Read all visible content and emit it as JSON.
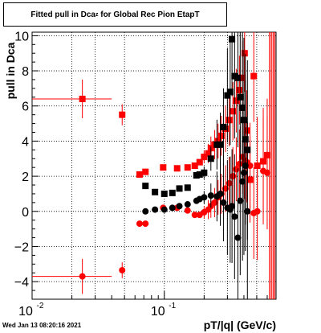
{
  "header": {
    "title_main": "Fitted pull in Dca",
    "title_sub": "z",
    "title_rest": " for Global Rec Pion EtapT",
    "timestamp": "Wed Jan 13 08:20:16 2021"
  },
  "chart_data": {
    "type": "scatter",
    "title": "Fitted pull in Dca_z for Global Rec Pion EtapT",
    "xlabel": "pT/|q| (GeV/c)",
    "ylabel": "pull in Dca",
    "xscale": "log",
    "xlim": [
      0.01,
      0.7
    ],
    "ylim": [
      -5,
      10.2
    ],
    "grid": true,
    "x_ticks": [
      {
        "value": 0.01,
        "label": "10",
        "exp": "-2"
      },
      {
        "value": 0.1,
        "label": "10",
        "exp": "-1"
      }
    ],
    "y_ticks": [
      -4,
      -2,
      0,
      2,
      4,
      6,
      8,
      10
    ],
    "series": [
      {
        "marker": "square",
        "color": "#ff0000",
        "points": [
          {
            "x": 0.024,
            "y": 6.4,
            "xerr": [
              0.014,
              0.016
            ],
            "yerr": 1.1
          },
          {
            "x": 0.048,
            "y": 5.5,
            "yerr": 0.6
          },
          {
            "x": 0.065,
            "y": 2.1
          },
          {
            "x": 0.072,
            "y": 2.25
          },
          {
            "x": 0.098,
            "y": 2.5
          },
          {
            "x": 0.125,
            "y": 2.45
          },
          {
            "x": 0.15,
            "y": 2.5
          },
          {
            "x": 0.17,
            "y": 2.6
          },
          {
            "x": 0.185,
            "y": 2.8
          },
          {
            "x": 0.2,
            "y": 3.1
          },
          {
            "x": 0.215,
            "y": 3.3
          },
          {
            "x": 0.225,
            "y": 3.6
          },
          {
            "x": 0.24,
            "y": 3.8
          },
          {
            "x": 0.255,
            "y": 4.0
          },
          {
            "x": 0.27,
            "y": 4.3
          },
          {
            "x": 0.29,
            "y": 4.7
          },
          {
            "x": 0.31,
            "y": 5.2
          },
          {
            "x": 0.33,
            "y": 5.7
          },
          {
            "x": 0.35,
            "y": 6.3
          },
          {
            "x": 0.37,
            "y": 6.9
          },
          {
            "x": 0.39,
            "y": 7.6
          },
          {
            "x": 0.405,
            "y": 9.0
          },
          {
            "x": 0.42,
            "y": 4.6
          },
          {
            "x": 0.445,
            "y": 1.8
          },
          {
            "x": 0.475,
            "y": 7.7
          },
          {
            "x": 0.505,
            "y": 2.6
          },
          {
            "x": 0.56,
            "y": 2.85
          },
          {
            "x": 0.6,
            "y": 3.2
          }
        ]
      },
      {
        "marker": "circle",
        "color": "#ff0000",
        "points": [
          {
            "x": 0.024,
            "y": -3.7,
            "xerr": [
              0.014,
              0.016
            ],
            "yerr": 1.0
          },
          {
            "x": 0.048,
            "y": -3.35,
            "yerr": 0.45
          },
          {
            "x": 0.065,
            "y": -0.7
          },
          {
            "x": 0.072,
            "y": -0.7
          },
          {
            "x": 0.098,
            "y": 0.2
          },
          {
            "x": 0.125,
            "y": 0.2
          },
          {
            "x": 0.15,
            "y": 0.05
          },
          {
            "x": 0.17,
            "y": -0.2
          },
          {
            "x": 0.185,
            "y": -0.2
          },
          {
            "x": 0.2,
            "y": -0.05
          },
          {
            "x": 0.215,
            "y": 0.1
          },
          {
            "x": 0.225,
            "y": 0.3
          },
          {
            "x": 0.24,
            "y": 0.5
          },
          {
            "x": 0.255,
            "y": 0.8
          },
          {
            "x": 0.27,
            "y": 1.0
          },
          {
            "x": 0.29,
            "y": 1.3
          },
          {
            "x": 0.31,
            "y": 1.6
          },
          {
            "x": 0.33,
            "y": 2.0
          },
          {
            "x": 0.35,
            "y": 2.4
          },
          {
            "x": 0.37,
            "y": 2.7
          },
          {
            "x": 0.39,
            "y": 3.1
          },
          {
            "x": 0.405,
            "y": 2.9
          },
          {
            "x": 0.42,
            "y": 2.8
          },
          {
            "x": 0.445,
            "y": 2.6
          },
          {
            "x": 0.475,
            "y": -0.1
          },
          {
            "x": 0.505,
            "y": 0.0
          },
          {
            "x": 0.56,
            "y": 2.3
          },
          {
            "x": 0.6,
            "y": 2.2
          }
        ]
      },
      {
        "marker": "square",
        "color": "#000000",
        "points": [
          {
            "x": 0.072,
            "y": 1.45
          },
          {
            "x": 0.085,
            "y": 1.1
          },
          {
            "x": 0.1,
            "y": 1.0
          },
          {
            "x": 0.115,
            "y": 1.05
          },
          {
            "x": 0.13,
            "y": 1.3
          },
          {
            "x": 0.15,
            "y": 1.35
          },
          {
            "x": 0.175,
            "y": 2.05
          },
          {
            "x": 0.185,
            "y": 2.1
          },
          {
            "x": 0.2,
            "y": 2.2
          },
          {
            "x": 0.225,
            "y": 3.0
          },
          {
            "x": 0.25,
            "y": 3.8
          },
          {
            "x": 0.265,
            "y": 3.8
          },
          {
            "x": 0.28,
            "y": 4.8
          },
          {
            "x": 0.3,
            "y": 6.6
          },
          {
            "x": 0.315,
            "y": 6.8
          },
          {
            "x": 0.325,
            "y": 9.8
          },
          {
            "x": 0.34,
            "y": 7.7
          },
          {
            "x": 0.36,
            "y": 7.6
          },
          {
            "x": 0.375,
            "y": 6.5
          },
          {
            "x": 0.39,
            "y": 5.9
          },
          {
            "x": 0.4,
            "y": 5.2
          },
          {
            "x": 0.41,
            "y": 4.1
          },
          {
            "x": 0.425,
            "y": 3.5
          }
        ]
      },
      {
        "marker": "circle",
        "color": "#000000",
        "points": [
          {
            "x": 0.072,
            "y": 0.0
          },
          {
            "x": 0.085,
            "y": 0.1
          },
          {
            "x": 0.1,
            "y": 0.1
          },
          {
            "x": 0.115,
            "y": 0.2
          },
          {
            "x": 0.13,
            "y": 0.3
          },
          {
            "x": 0.15,
            "y": 0.4
          },
          {
            "x": 0.175,
            "y": 0.6
          },
          {
            "x": 0.185,
            "y": 0.7
          },
          {
            "x": 0.2,
            "y": 0.8
          },
          {
            "x": 0.225,
            "y": 0.9
          },
          {
            "x": 0.25,
            "y": 0.85
          },
          {
            "x": 0.265,
            "y": 1.0
          },
          {
            "x": 0.28,
            "y": 0.5
          },
          {
            "x": 0.3,
            "y": 0.2
          },
          {
            "x": 0.315,
            "y": 0.1
          },
          {
            "x": 0.325,
            "y": 0.3
          },
          {
            "x": 0.34,
            "y": -0.3
          },
          {
            "x": 0.36,
            "y": -1.5
          },
          {
            "x": 0.375,
            "y": 0.6
          },
          {
            "x": 0.39,
            "y": 1.7
          },
          {
            "x": 0.4,
            "y": 2.2
          },
          {
            "x": 0.41,
            "y": 2.6
          },
          {
            "x": 0.425,
            "y": 0.0
          }
        ]
      }
    ]
  }
}
